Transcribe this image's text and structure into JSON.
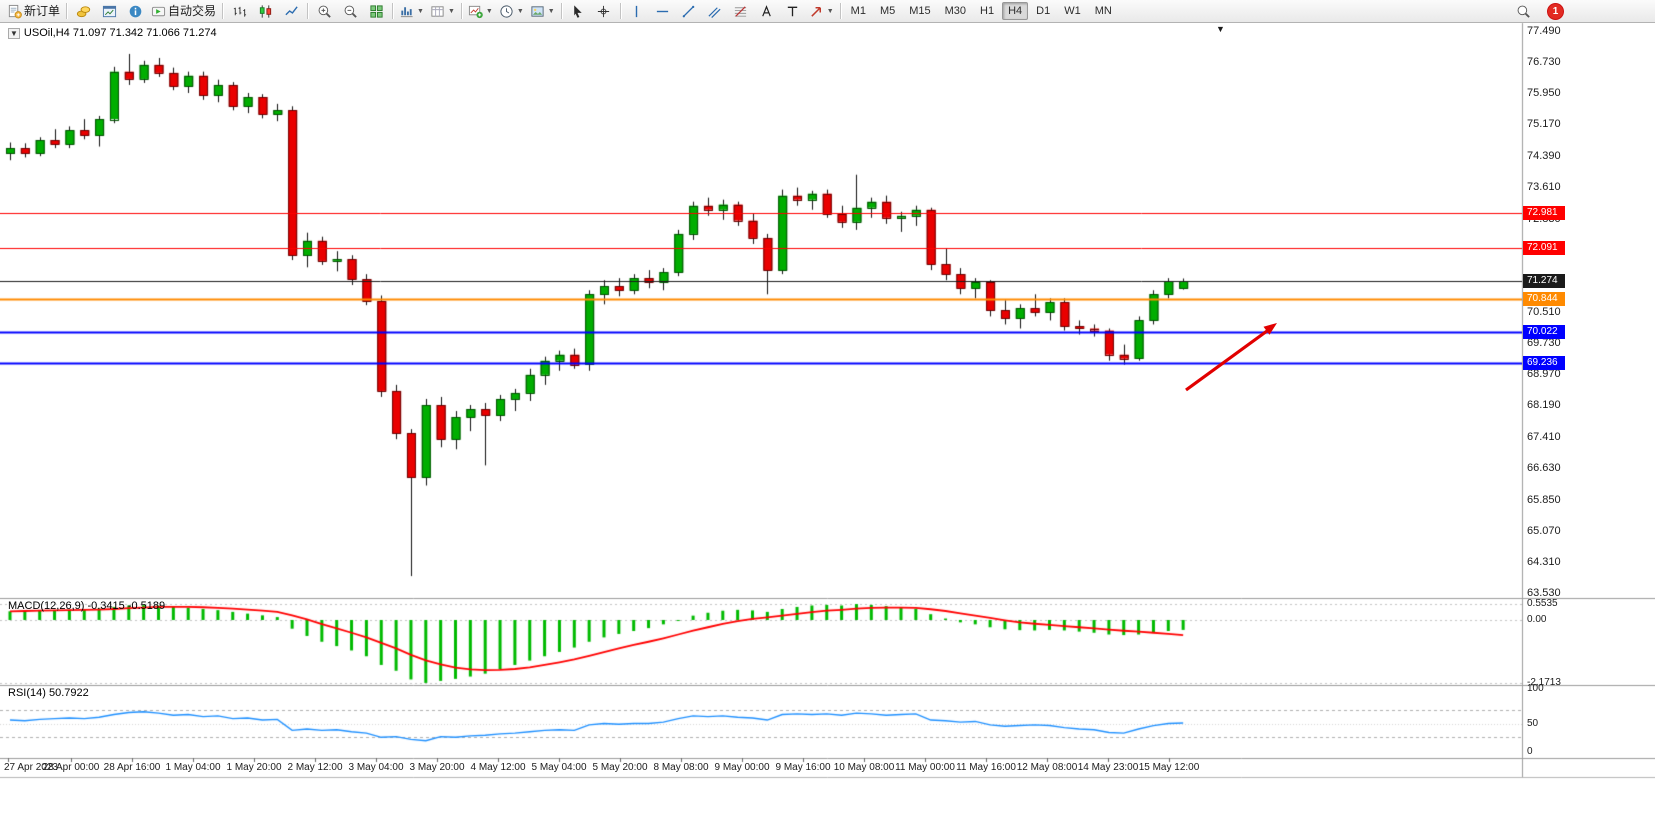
{
  "toolbar": {
    "items": [
      {
        "name": "new-order-button",
        "icon": "doc-plus-icon",
        "label": "新订单"
      },
      {
        "type": "separator"
      },
      {
        "name": "market-watch-button",
        "icon": "coins-icon"
      },
      {
        "name": "chart-window-button",
        "icon": "chart-window-icon"
      },
      {
        "name": "community-button",
        "icon": "info-icon"
      },
      {
        "name": "auto-trading-button",
        "icon": "autotrade-icon",
        "label": "自动交易"
      },
      {
        "type": "separator"
      },
      {
        "name": "bar-chart-button",
        "icon": "bar-chart-icon"
      },
      {
        "name": "candle-chart-button",
        "icon": "candle-chart-icon"
      },
      {
        "name": "line-chart-button",
        "icon": "line-chart-icon"
      },
      {
        "type": "separator"
      },
      {
        "name": "zoom-in-button",
        "icon": "zoom-in-icon"
      },
      {
        "name": "zoom-out-button",
        "icon": "zoom-out-icon"
      },
      {
        "name": "tile-windows-button",
        "icon": "tile-windows-icon"
      },
      {
        "type": "separator"
      },
      {
        "name": "indicators-button",
        "icon": "indicators-icon",
        "dropdown": true
      },
      {
        "name": "periods-button",
        "icon": "periods-icon",
        "dropdown": true
      },
      {
        "type": "separator"
      },
      {
        "name": "new-chart-button",
        "icon": "new-chart-icon",
        "dropdown": true
      },
      {
        "name": "cycles-button",
        "icon": "clock-icon",
        "dropdown": true
      },
      {
        "name": "templates-button",
        "icon": "template-icon",
        "dropdown": true
      },
      {
        "type": "separator"
      },
      {
        "name": "cursor-button",
        "icon": "cursor-icon"
      },
      {
        "name": "crosshair-button",
        "icon": "crosshair-icon"
      },
      {
        "type": "separator"
      },
      {
        "name": "vertical-line-button",
        "icon": "vline-icon"
      },
      {
        "name": "horizontal-line-button",
        "icon": "hline-icon"
      },
      {
        "name": "trendline-button",
        "icon": "trendline-icon"
      },
      {
        "name": "channel-button",
        "icon": "channel-icon"
      },
      {
        "name": "fibonacci-button",
        "icon": "fibo-icon"
      },
      {
        "name": "text-button",
        "icon": "text-a-icon"
      },
      {
        "name": "label-button",
        "icon": "label-t-icon"
      },
      {
        "name": "arrows-button",
        "icon": "arrow-shape-icon",
        "dropdown": true
      },
      {
        "type": "separator"
      }
    ],
    "timeframes": [
      {
        "label": "M1"
      },
      {
        "label": "M5"
      },
      {
        "label": "M15"
      },
      {
        "label": "M30"
      },
      {
        "label": "H1"
      },
      {
        "label": "H4",
        "active": true
      },
      {
        "label": "D1"
      },
      {
        "label": "W1"
      },
      {
        "label": "MN"
      }
    ],
    "notification_count": "1"
  },
  "chart": {
    "symbol_line": "USOil,H4 71.097 71.342 71.066 71.274",
    "collapse_glyph": "▼",
    "shift_marker_glyph": "▼",
    "price_axis_ticks": [
      "77.490",
      "76.730",
      "75.950",
      "75.170",
      "74.390",
      "73.610",
      "72.830",
      "72.050",
      "71.270",
      "70.510",
      "69.730",
      "68.970",
      "68.190",
      "67.410",
      "66.630",
      "65.850",
      "65.070",
      "64.310",
      "63.530"
    ],
    "time_axis": [
      "27 Apr 2023",
      "28 Apr 00:00",
      "28 Apr 16:00",
      "1 May 04:00",
      "1 May 20:00",
      "2 May 12:00",
      "3 May 04:00",
      "3 May 20:00",
      "4 May 12:00",
      "5 May 04:00",
      "5 May 20:00",
      "8 May 08:00",
      "9 May 00:00",
      "9 May 16:00",
      "10 May 08:00",
      "11 May 00:00",
      "11 May 16:00",
      "12 May 08:00",
      "14 May 23:00",
      "15 May 12:00"
    ],
    "hlines": [
      {
        "price": 72.981,
        "label": "72.981",
        "color": "#ff0000",
        "width": 1
      },
      {
        "price": 72.091,
        "label": "72.091",
        "color": "#ff0000",
        "width": 1
      },
      {
        "price": 71.274,
        "label": "71.274",
        "color": "#1a1a1a",
        "width": 1
      },
      {
        "price": 70.844,
        "label": "70.844",
        "color": "#ff8a00",
        "width": 2
      },
      {
        "price": 70.022,
        "label": "70.022",
        "color": "#0000ff",
        "width": 2
      },
      {
        "price": 69.236,
        "label": "69.236",
        "color": "#0000ff",
        "width": 2
      }
    ],
    "annotation": {
      "type": "arrow",
      "color": "#e10000"
    }
  },
  "indicators": {
    "macd": {
      "label": "MACD(12,26,9) -0.3415 -0.5189",
      "axis": [
        {
          "v": 0.5535,
          "label": "0.5535"
        },
        {
          "v": 0,
          "label": "0.00"
        },
        {
          "v": -2.1713,
          "label": "-2.1713"
        }
      ],
      "histogram_color": "#00ba00",
      "signal_color": "#ff0000"
    },
    "rsi": {
      "label": "RSI(14) 50.7922",
      "axis": [
        {
          "v": 100,
          "label": "100"
        },
        {
          "v": 50,
          "label": "50"
        },
        {
          "v": 0,
          "label": "0"
        }
      ],
      "levels": [
        70,
        30
      ],
      "line_color": "#1e90ff"
    }
  },
  "chart_data": {
    "type": "candlestick",
    "symbol": "USOil",
    "timeframe": "H4",
    "price_range": [
      63.53,
      77.49
    ],
    "up_color": "#00ae00",
    "down_color": "#ea0000",
    "ohlc": [
      [
        74.45,
        74.72,
        74.28,
        74.58
      ],
      [
        74.58,
        74.7,
        74.35,
        74.45
      ],
      [
        74.45,
        74.85,
        74.38,
        74.78
      ],
      [
        74.78,
        75.05,
        74.58,
        74.68
      ],
      [
        74.68,
        75.12,
        74.58,
        75.02
      ],
      [
        75.02,
        75.3,
        74.8,
        74.9
      ],
      [
        74.9,
        75.38,
        74.62,
        75.3
      ],
      [
        75.3,
        76.6,
        75.2,
        76.48
      ],
      [
        76.48,
        76.92,
        76.15,
        76.3
      ],
      [
        76.3,
        76.75,
        76.2,
        76.65
      ],
      [
        76.65,
        76.82,
        76.35,
        76.45
      ],
      [
        76.45,
        76.58,
        76.02,
        76.12
      ],
      [
        76.12,
        76.48,
        75.95,
        76.38
      ],
      [
        76.38,
        76.48,
        75.78,
        75.9
      ],
      [
        75.9,
        76.28,
        75.72,
        76.15
      ],
      [
        76.15,
        76.22,
        75.52,
        75.62
      ],
      [
        75.62,
        75.95,
        75.45,
        75.85
      ],
      [
        75.85,
        75.92,
        75.32,
        75.42
      ],
      [
        75.42,
        75.68,
        75.25,
        75.52
      ],
      [
        75.52,
        75.62,
        71.8,
        71.92
      ],
      [
        71.92,
        72.48,
        71.62,
        72.28
      ],
      [
        72.28,
        72.38,
        71.68,
        71.78
      ],
      [
        71.78,
        72.02,
        71.52,
        71.82
      ],
      [
        71.82,
        71.92,
        71.18,
        71.32
      ],
      [
        71.32,
        71.45,
        70.68,
        70.78
      ],
      [
        70.78,
        70.92,
        68.4,
        68.55
      ],
      [
        68.55,
        68.7,
        67.35,
        67.5
      ],
      [
        67.5,
        67.6,
        63.95,
        66.4
      ],
      [
        66.4,
        68.35,
        66.2,
        68.2
      ],
      [
        68.2,
        68.4,
        67.15,
        67.35
      ],
      [
        67.35,
        68.05,
        67.1,
        67.9
      ],
      [
        67.9,
        68.2,
        67.55,
        68.1
      ],
      [
        68.1,
        68.25,
        66.7,
        67.95
      ],
      [
        67.95,
        68.45,
        67.8,
        68.35
      ],
      [
        68.35,
        68.6,
        68.05,
        68.5
      ],
      [
        68.5,
        69.1,
        68.3,
        68.95
      ],
      [
        68.95,
        69.4,
        68.7,
        69.3
      ],
      [
        69.3,
        69.55,
        69.05,
        69.45
      ],
      [
        69.45,
        69.6,
        69.1,
        69.2
      ],
      [
        69.2,
        71.05,
        69.05,
        70.95
      ],
      [
        70.95,
        71.3,
        70.7,
        71.15
      ],
      [
        71.15,
        71.35,
        70.9,
        71.05
      ],
      [
        71.05,
        71.45,
        70.95,
        71.35
      ],
      [
        71.35,
        71.55,
        71.1,
        71.25
      ],
      [
        71.25,
        71.6,
        71.05,
        71.5
      ],
      [
        71.5,
        72.55,
        71.4,
        72.45
      ],
      [
        72.45,
        73.25,
        72.3,
        73.15
      ],
      [
        73.15,
        73.35,
        72.9,
        73.05
      ],
      [
        73.05,
        73.3,
        72.8,
        73.18
      ],
      [
        73.18,
        73.25,
        72.65,
        72.78
      ],
      [
        72.78,
        72.95,
        72.2,
        72.35
      ],
      [
        72.35,
        72.45,
        70.95,
        71.55
      ],
      [
        71.55,
        73.55,
        71.45,
        73.4
      ],
      [
        73.4,
        73.6,
        73.15,
        73.3
      ],
      [
        73.3,
        73.52,
        73.05,
        73.45
      ],
      [
        73.45,
        73.55,
        72.85,
        72.95
      ],
      [
        72.95,
        73.15,
        72.6,
        72.75
      ],
      [
        72.75,
        73.92,
        72.55,
        73.1
      ],
      [
        73.1,
        73.35,
        72.85,
        73.25
      ],
      [
        73.25,
        73.4,
        72.7,
        72.85
      ],
      [
        72.85,
        73.0,
        72.5,
        72.9
      ],
      [
        72.9,
        73.15,
        72.65,
        73.05
      ],
      [
        73.05,
        73.1,
        71.55,
        71.7
      ],
      [
        71.7,
        72.1,
        71.3,
        71.45
      ],
      [
        71.45,
        71.6,
        70.95,
        71.1
      ],
      [
        71.1,
        71.35,
        70.85,
        71.25
      ],
      [
        71.25,
        71.3,
        70.4,
        70.55
      ],
      [
        70.55,
        70.8,
        70.2,
        70.35
      ],
      [
        70.35,
        70.7,
        70.1,
        70.6
      ],
      [
        70.6,
        70.95,
        70.4,
        70.5
      ],
      [
        70.5,
        70.85,
        70.3,
        70.75
      ],
      [
        70.75,
        70.85,
        70.05,
        70.15
      ],
      [
        70.15,
        70.3,
        69.95,
        70.1
      ],
      [
        70.1,
        70.2,
        69.9,
        70.05
      ],
      [
        70.05,
        70.1,
        69.3,
        69.45
      ],
      [
        69.45,
        69.7,
        69.2,
        69.35
      ],
      [
        69.35,
        70.4,
        69.3,
        70.3
      ],
      [
        70.3,
        71.05,
        70.2,
        70.95
      ],
      [
        70.95,
        71.35,
        70.85,
        71.27
      ],
      [
        71.097,
        71.342,
        71.066,
        71.274
      ]
    ],
    "macd_main": [
      0.3,
      0.32,
      0.33,
      0.35,
      0.36,
      0.38,
      0.4,
      0.45,
      0.5,
      0.52,
      0.5,
      0.46,
      0.42,
      0.38,
      0.34,
      0.28,
      0.22,
      0.16,
      0.1,
      -0.3,
      -0.55,
      -0.75,
      -0.9,
      -1.05,
      -1.25,
      -1.55,
      -1.75,
      -2.05,
      -2.17,
      -2.1,
      -2.03,
      -1.95,
      -1.85,
      -1.7,
      -1.55,
      -1.4,
      -1.25,
      -1.1,
      -0.95,
      -0.75,
      -0.6,
      -0.48,
      -0.38,
      -0.28,
      -0.15,
      0.0,
      0.15,
      0.25,
      0.32,
      0.35,
      0.33,
      0.28,
      0.38,
      0.45,
      0.5,
      0.52,
      0.5,
      0.55,
      0.52,
      0.48,
      0.42,
      0.38,
      0.2,
      0.05,
      -0.08,
      -0.15,
      -0.25,
      -0.32,
      -0.35,
      -0.36,
      -0.34,
      -0.36,
      -0.4,
      -0.44,
      -0.5,
      -0.52,
      -0.5,
      -0.45,
      -0.38,
      -0.3415
    ],
    "macd_signal": [
      0.3,
      0.31,
      0.32,
      0.33,
      0.34,
      0.35,
      0.36,
      0.38,
      0.41,
      0.43,
      0.45,
      0.45,
      0.45,
      0.44,
      0.42,
      0.39,
      0.36,
      0.32,
      0.28,
      0.16,
      0.02,
      -0.14,
      -0.29,
      -0.44,
      -0.6,
      -0.79,
      -0.98,
      -1.2,
      -1.39,
      -1.53,
      -1.64,
      -1.7,
      -1.73,
      -1.72,
      -1.69,
      -1.63,
      -1.55,
      -1.46,
      -1.36,
      -1.24,
      -1.11,
      -0.98,
      -0.86,
      -0.75,
      -0.63,
      -0.5,
      -0.37,
      -0.25,
      -0.13,
      -0.04,
      0.04,
      0.09,
      0.15,
      0.21,
      0.27,
      0.32,
      0.35,
      0.39,
      0.42,
      0.43,
      0.43,
      0.42,
      0.37,
      0.31,
      0.23,
      0.15,
      0.07,
      -0.01,
      -0.08,
      -0.13,
      -0.17,
      -0.21,
      -0.25,
      -0.29,
      -0.33,
      -0.37,
      -0.4,
      -0.44,
      -0.48,
      -0.5189
    ],
    "rsi": [
      55,
      54,
      56,
      57,
      58,
      57,
      59,
      63,
      66,
      67,
      65,
      62,
      63,
      60,
      61,
      57,
      58,
      55,
      56,
      40,
      42,
      40,
      41,
      38,
      36,
      30,
      31,
      27,
      25,
      31,
      30,
      32,
      33,
      35,
      36,
      38,
      40,
      41,
      40,
      48,
      50,
      49,
      50,
      50,
      52,
      57,
      61,
      60,
      61,
      59,
      58,
      55,
      63,
      64,
      63,
      64,
      62,
      65,
      64,
      62,
      63,
      64,
      55,
      54,
      52,
      53,
      48,
      46,
      47,
      48,
      47,
      44,
      42,
      41,
      37,
      36,
      42,
      47,
      50,
      50.79
    ]
  }
}
